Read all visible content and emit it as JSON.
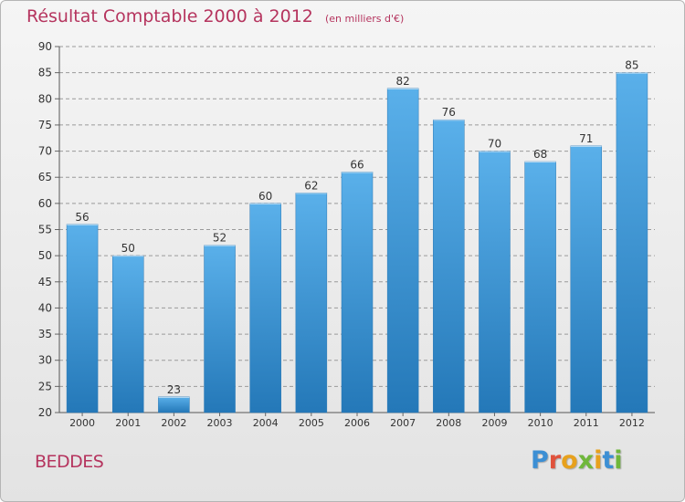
{
  "header": {
    "title": "Résultat Comptable 2000 à 2012",
    "subtitle": "(en milliers d'€)"
  },
  "footer": {
    "commune": "BEDDES",
    "logo_text": "Proxiti"
  },
  "colors": {
    "title": "#b5345e",
    "bar_top": "#5ab0ea",
    "bar_bottom": "#2478b8",
    "grid": "#9a9a9a",
    "logo_letters": [
      "#3c8fd4",
      "#e0523c",
      "#e7a11d",
      "#6fb73b",
      "#e7a11d",
      "#3c8fd4",
      "#6fb73b"
    ]
  },
  "chart_data": {
    "type": "bar",
    "categories": [
      "2000",
      "2001",
      "2002",
      "2003",
      "2004",
      "2005",
      "2006",
      "2007",
      "2008",
      "2009",
      "2010",
      "2011",
      "2012"
    ],
    "values": [
      56,
      50,
      23,
      52,
      60,
      62,
      66,
      82,
      76,
      70,
      68,
      71,
      85
    ],
    "ylim": [
      20,
      90
    ],
    "ytick_step": 5,
    "grid": "horizontal-dashed",
    "data_labels": true,
    "title": "Résultat Comptable 2000 à 2012",
    "subtitle": "(en milliers d'€)",
    "xlabel": "",
    "ylabel": ""
  }
}
